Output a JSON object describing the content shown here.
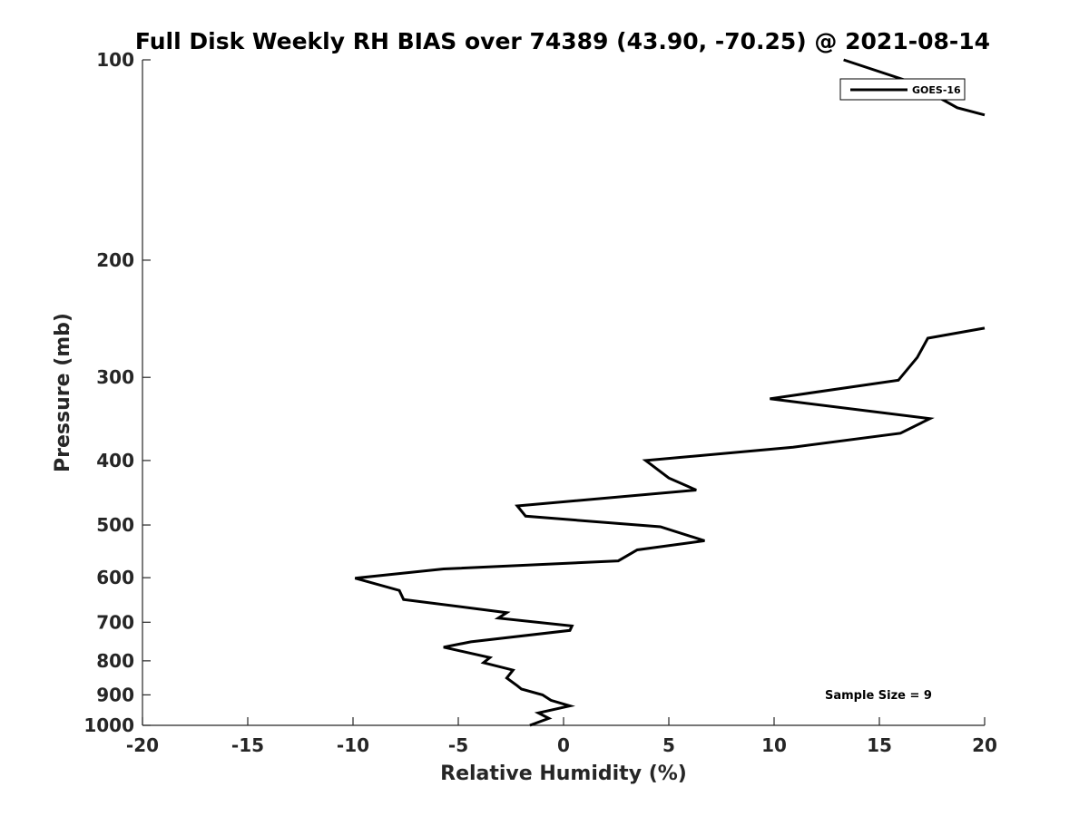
{
  "chart_data": {
    "type": "line",
    "title": "Full Disk Weekly RH BIAS over 74389 (43.90, -70.25) @ 2021-08-14",
    "xlabel": "Relative Humidity (%)",
    "ylabel": "Pressure (mb)",
    "xlim": [
      -20,
      20
    ],
    "ylim": [
      1000,
      100
    ],
    "yscale": "log",
    "xticks": [
      "-20",
      "-15",
      "-10",
      "-5",
      "0",
      "5",
      "10",
      "15",
      "20"
    ],
    "yticks": [
      "100",
      "200",
      "300",
      "400",
      "500",
      "600",
      "700",
      "800",
      "900",
      "1000"
    ],
    "grid": false,
    "legend": {
      "position": "top-right",
      "entries": [
        "GOES-16"
      ]
    },
    "annotation": "Sample Size = 9",
    "series": [
      {
        "name": "GOES-16",
        "color": "#000000",
        "segments": [
          [
            [
              13.3,
              100
            ],
            [
              16.5,
              108
            ],
            [
              18.7,
              118
            ],
            [
              20.0,
              121
            ]
          ],
          [
            [
              20.0,
              253
            ],
            [
              17.3,
              262
            ],
            [
              16.8,
              280
            ],
            [
              15.9,
              303
            ],
            [
              9.8,
              323
            ],
            [
              17.4,
              346
            ],
            [
              16.0,
              364
            ],
            [
              10.9,
              382
            ],
            [
              3.9,
              400
            ],
            [
              5.0,
              425
            ],
            [
              6.3,
              443
            ],
            [
              -2.2,
              468
            ],
            [
              -1.8,
              485
            ],
            [
              4.6,
              503
            ],
            [
              6.7,
              528
            ],
            [
              3.5,
              545
            ],
            [
              2.6,
              566
            ],
            [
              -5.7,
              582
            ],
            [
              -9.9,
              601
            ],
            [
              -7.8,
              627
            ],
            [
              -7.6,
              647
            ],
            [
              -2.7,
              677
            ],
            [
              -3.1,
              690
            ],
            [
              0.4,
              709
            ],
            [
              0.3,
              720
            ],
            [
              -4.4,
              749
            ],
            [
              -5.7,
              763
            ],
            [
              -3.5,
              791
            ],
            [
              -3.8,
              805
            ],
            [
              -2.4,
              826
            ],
            [
              -2.7,
              849
            ],
            [
              -2.2,
              872
            ],
            [
              -2.0,
              882
            ],
            [
              -1.0,
              900
            ],
            [
              -0.6,
              917
            ],
            [
              0.3,
              935
            ],
            [
              -1.2,
              958
            ],
            [
              -0.7,
              976
            ],
            [
              -1.6,
              1000
            ]
          ]
        ]
      }
    ]
  }
}
